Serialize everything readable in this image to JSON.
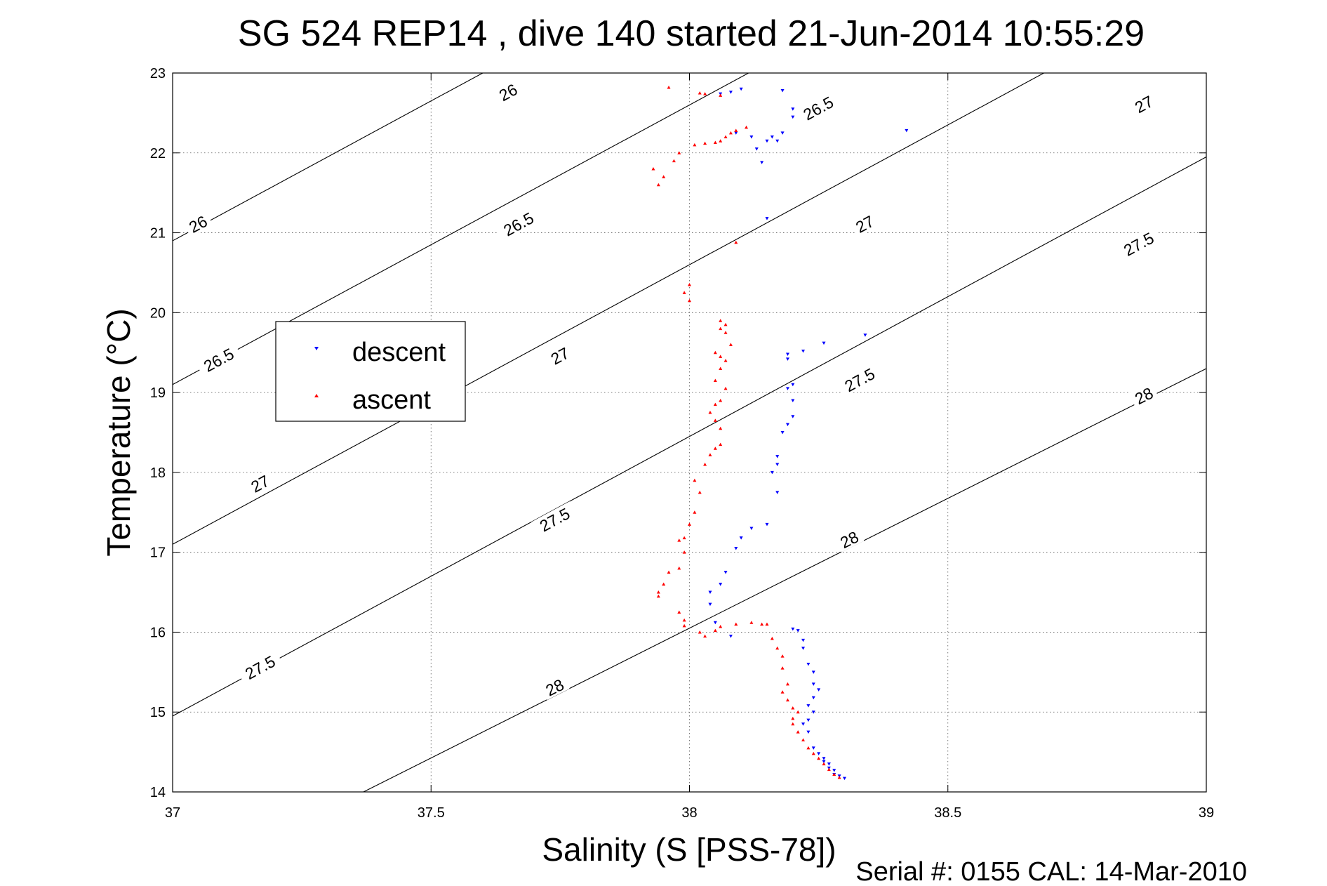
{
  "chart_data": {
    "type": "scatter",
    "title": "SG 524   REP14  , dive 140 started 21-Jun-2014 10:55:29",
    "xlabel": "Salinity (S [PSS-78])",
    "ylabel": "Temperature (°C)",
    "xlim": [
      37,
      39
    ],
    "ylim": [
      14,
      23
    ],
    "xticks": [
      37,
      37.5,
      38,
      38.5,
      39
    ],
    "yticks": [
      14,
      15,
      16,
      17,
      18,
      19,
      20,
      21,
      22,
      23
    ],
    "grid": true,
    "legend_position": "center-left",
    "footer": "Serial #: 0155  CAL: 14-Mar-2010",
    "density_contours": [
      {
        "sigma": "26",
        "t0": 20.9,
        "slope": 3.5,
        "labels": [
          {
            "s": 37.05,
            "t": 21.1
          },
          {
            "s": 37.65,
            "t": 22.75
          }
        ]
      },
      {
        "sigma": "26.5",
        "t0": 19.1,
        "slope": 3.5,
        "labels": [
          {
            "s": 37.09,
            "t": 19.4
          },
          {
            "s": 37.67,
            "t": 21.1
          },
          {
            "s": 38.25,
            "t": 22.55
          }
        ]
      },
      {
        "sigma": "27",
        "t0": 17.1,
        "slope": 3.5,
        "labels": [
          {
            "s": 37.17,
            "t": 17.85
          },
          {
            "s": 37.75,
            "t": 19.45
          },
          {
            "s": 38.34,
            "t": 21.1
          },
          {
            "s": 38.88,
            "t": 22.6
          }
        ]
      },
      {
        "sigma": "27.5",
        "t0": 14.95,
        "slope": 3.5,
        "labels": [
          {
            "s": 37.17,
            "t": 15.55
          },
          {
            "s": 37.74,
            "t": 17.4
          },
          {
            "s": 38.33,
            "t": 19.15
          },
          {
            "s": 38.87,
            "t": 20.85
          }
        ]
      },
      {
        "sigma": "28",
        "t0": 12.8,
        "slope": 3.25,
        "labels": [
          {
            "s": 37.74,
            "t": 15.3
          },
          {
            "s": 38.31,
            "t": 17.15
          },
          {
            "s": 38.88,
            "t": 18.95
          }
        ]
      }
    ],
    "series": [
      {
        "name": "descent",
        "color": "#0000ff",
        "marker": "triangle-down",
        "points": [
          [
            38.18,
            22.78
          ],
          [
            38.06,
            22.74
          ],
          [
            38.08,
            22.76
          ],
          [
            38.1,
            22.8
          ],
          [
            38.2,
            22.55
          ],
          [
            38.2,
            22.45
          ],
          [
            38.09,
            22.25
          ],
          [
            38.12,
            22.2
          ],
          [
            38.15,
            22.15
          ],
          [
            38.16,
            22.2
          ],
          [
            38.18,
            22.25
          ],
          [
            38.17,
            22.15
          ],
          [
            38.13,
            22.05
          ],
          [
            38.14,
            21.88
          ],
          [
            38.15,
            21.18
          ],
          [
            38.42,
            22.28
          ],
          [
            38.34,
            19.72
          ],
          [
            38.26,
            19.62
          ],
          [
            38.19,
            19.48
          ],
          [
            38.19,
            19.42
          ],
          [
            38.22,
            19.52
          ],
          [
            38.2,
            19.1
          ],
          [
            38.19,
            19.05
          ],
          [
            38.2,
            18.9
          ],
          [
            38.2,
            18.7
          ],
          [
            38.19,
            18.6
          ],
          [
            38.18,
            18.5
          ],
          [
            38.17,
            18.2
          ],
          [
            38.17,
            18.1
          ],
          [
            38.16,
            18.0
          ],
          [
            38.17,
            17.75
          ],
          [
            38.15,
            17.35
          ],
          [
            38.12,
            17.3
          ],
          [
            38.1,
            17.18
          ],
          [
            38.09,
            17.05
          ],
          [
            38.07,
            16.75
          ],
          [
            38.06,
            16.6
          ],
          [
            38.04,
            16.5
          ],
          [
            38.04,
            16.35
          ],
          [
            38.05,
            16.12
          ],
          [
            38.08,
            15.95
          ],
          [
            38.2,
            16.04
          ],
          [
            38.21,
            16.02
          ],
          [
            38.22,
            15.9
          ],
          [
            38.22,
            15.8
          ],
          [
            38.23,
            15.6
          ],
          [
            38.24,
            15.5
          ],
          [
            38.24,
            15.35
          ],
          [
            38.25,
            15.28
          ],
          [
            38.24,
            15.18
          ],
          [
            38.23,
            15.08
          ],
          [
            38.24,
            15.0
          ],
          [
            38.23,
            14.9
          ],
          [
            38.22,
            14.85
          ],
          [
            38.23,
            14.75
          ],
          [
            38.24,
            14.55
          ],
          [
            38.25,
            14.48
          ],
          [
            38.26,
            14.42
          ],
          [
            38.27,
            14.35
          ],
          [
            38.28,
            14.27
          ],
          [
            38.29,
            14.2
          ],
          [
            38.3,
            14.17
          ],
          [
            38.28,
            14.22
          ],
          [
            38.27,
            14.3
          ],
          [
            38.26,
            14.38
          ]
        ]
      },
      {
        "name": "ascent",
        "color": "#ff0000",
        "marker": "triangle-up",
        "points": [
          [
            37.96,
            22.82
          ],
          [
            38.02,
            22.75
          ],
          [
            38.03,
            22.74
          ],
          [
            38.06,
            22.72
          ],
          [
            38.11,
            22.32
          ],
          [
            38.09,
            22.28
          ],
          [
            38.08,
            22.25
          ],
          [
            38.07,
            22.2
          ],
          [
            38.06,
            22.15
          ],
          [
            38.05,
            22.13
          ],
          [
            38.03,
            22.12
          ],
          [
            38.01,
            22.1
          ],
          [
            37.98,
            22.0
          ],
          [
            37.97,
            21.9
          ],
          [
            37.93,
            21.8
          ],
          [
            37.95,
            21.7
          ],
          [
            37.94,
            21.6
          ],
          [
            38.09,
            20.88
          ],
          [
            38.0,
            20.35
          ],
          [
            37.99,
            20.25
          ],
          [
            38.0,
            20.15
          ],
          [
            38.06,
            19.9
          ],
          [
            38.07,
            19.85
          ],
          [
            38.06,
            19.8
          ],
          [
            38.07,
            19.75
          ],
          [
            38.08,
            19.6
          ],
          [
            38.05,
            19.5
          ],
          [
            38.06,
            19.45
          ],
          [
            38.07,
            19.4
          ],
          [
            38.06,
            19.3
          ],
          [
            38.05,
            19.15
          ],
          [
            38.07,
            19.05
          ],
          [
            38.06,
            18.9
          ],
          [
            38.05,
            18.85
          ],
          [
            38.04,
            18.75
          ],
          [
            38.05,
            18.65
          ],
          [
            38.06,
            18.55
          ],
          [
            38.06,
            18.35
          ],
          [
            38.05,
            18.3
          ],
          [
            38.04,
            18.22
          ],
          [
            38.03,
            18.1
          ],
          [
            38.01,
            17.9
          ],
          [
            38.02,
            17.75
          ],
          [
            38.01,
            17.5
          ],
          [
            38.0,
            17.35
          ],
          [
            37.99,
            17.18
          ],
          [
            37.98,
            17.15
          ],
          [
            37.99,
            17.0
          ],
          [
            37.98,
            16.8
          ],
          [
            37.96,
            16.75
          ],
          [
            37.95,
            16.6
          ],
          [
            37.94,
            16.5
          ],
          [
            37.94,
            16.45
          ],
          [
            37.98,
            16.25
          ],
          [
            37.99,
            16.15
          ],
          [
            37.99,
            16.08
          ],
          [
            38.02,
            16.0
          ],
          [
            38.03,
            15.95
          ],
          [
            38.05,
            16.02
          ],
          [
            38.06,
            16.07
          ],
          [
            38.09,
            16.1
          ],
          [
            38.12,
            16.12
          ],
          [
            38.14,
            16.1
          ],
          [
            38.15,
            16.1
          ],
          [
            38.16,
            15.92
          ],
          [
            38.17,
            15.8
          ],
          [
            38.18,
            15.7
          ],
          [
            38.18,
            15.55
          ],
          [
            38.19,
            15.35
          ],
          [
            38.18,
            15.25
          ],
          [
            38.19,
            15.15
          ],
          [
            38.2,
            15.05
          ],
          [
            38.21,
            15.0
          ],
          [
            38.2,
            14.92
          ],
          [
            38.2,
            14.85
          ],
          [
            38.21,
            14.75
          ],
          [
            38.22,
            14.65
          ],
          [
            38.23,
            14.55
          ],
          [
            38.24,
            14.48
          ],
          [
            38.25,
            14.42
          ],
          [
            38.26,
            14.35
          ],
          [
            38.27,
            14.28
          ],
          [
            38.28,
            14.22
          ],
          [
            38.29,
            14.18
          ]
        ]
      }
    ]
  }
}
